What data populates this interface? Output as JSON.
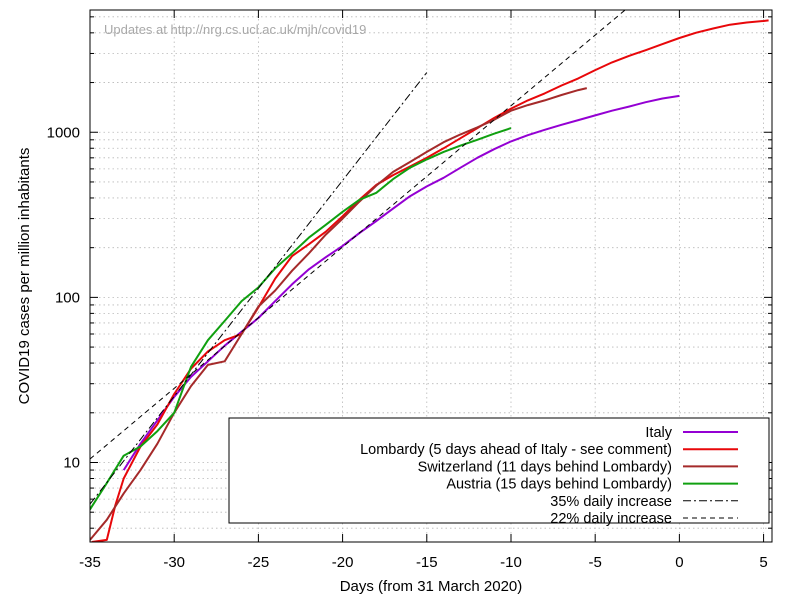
{
  "chart_data": {
    "type": "line",
    "watermark": "Updates at http://nrg.cs.ucl.ac.uk/mjh/covid19",
    "xlabel": "Days (from 31 March 2020)",
    "ylabel": "COVID19 cases per million inhabitants",
    "xlim": [
      -35,
      5.5
    ],
    "ylim": [
      3.3,
      5500
    ],
    "yscale": "log",
    "xticks": [
      -35,
      -30,
      -25,
      -20,
      -15,
      -10,
      -5,
      0,
      5
    ],
    "xtick_labels": [
      "-35",
      "-30",
      "-25",
      "-20",
      "-15",
      "-10",
      "-5",
      "0",
      "5"
    ],
    "yticks": [
      10,
      100,
      1000
    ],
    "ytick_labels": [
      "10",
      "100",
      "1000"
    ],
    "grid": true,
    "legend_position": "bottom-right",
    "series": [
      {
        "name": "Italy",
        "color": "#9400d3",
        "dash": "solid",
        "x": [
          -33,
          -32,
          -31,
          -30,
          -29,
          -28,
          -27,
          -26,
          -25,
          -24,
          -23,
          -22,
          -21,
          -20,
          -19,
          -18,
          -17,
          -16,
          -15,
          -14,
          -13,
          -12,
          -11,
          -10,
          -9,
          -8,
          -7,
          -6,
          -5,
          -4,
          -3,
          -2,
          -1,
          0
        ],
        "y": [
          9,
          13,
          18,
          25,
          33,
          41,
          51,
          62,
          75,
          95,
          120,
          148,
          175,
          205,
          245,
          290,
          345,
          410,
          470,
          530,
          610,
          700,
          790,
          880,
          960,
          1035,
          1110,
          1185,
          1265,
          1350,
          1430,
          1520,
          1600,
          1660
        ]
      },
      {
        "name": "Lombardy (5 days ahead of Italy - see comment)",
        "color": "#e8070a",
        "dash": "solid",
        "x": [
          -34.9,
          -34,
          -33.5,
          -33,
          -32,
          -31,
          -30,
          -29,
          -28,
          -27,
          -26,
          -25,
          -24,
          -23,
          -22,
          -21,
          -20,
          -19,
          -18,
          -17,
          -16,
          -15,
          -14,
          -13,
          -12,
          -11,
          -10,
          -9,
          -8,
          -7,
          -6,
          -5,
          -4,
          -3,
          -2,
          -1,
          0,
          1,
          2,
          3,
          4,
          5,
          5.3
        ],
        "y": [
          3.3,
          3.4,
          5.5,
          8,
          12.5,
          17,
          26,
          37,
          47,
          55,
          60,
          87,
          130,
          178,
          210,
          250,
          310,
          390,
          480,
          550,
          620,
          700,
          800,
          920,
          1060,
          1220,
          1390,
          1560,
          1720,
          1920,
          2120,
          2380,
          2650,
          2900,
          3140,
          3420,
          3720,
          4010,
          4250,
          4480,
          4620,
          4720,
          4760
        ]
      },
      {
        "name": "Switzerland (11 days behind Lombardy)",
        "color": "#a52a2a",
        "dash": "solid",
        "x": [
          -35,
          -34,
          -33,
          -32,
          -31,
          -30,
          -29,
          -28,
          -27,
          -26,
          -25,
          -24,
          -23,
          -22,
          -21,
          -20,
          -19,
          -18,
          -17,
          -16,
          -15,
          -14,
          -13,
          -12,
          -11,
          -10,
          -9,
          -8,
          -7,
          -6,
          -5.5
        ],
        "y": [
          3.4,
          4.5,
          6.5,
          9,
          13,
          20,
          29,
          39,
          41,
          60,
          88,
          110,
          145,
          185,
          240,
          300,
          380,
          475,
          575,
          660,
          760,
          870,
          970,
          1070,
          1190,
          1350,
          1460,
          1560,
          1680,
          1800,
          1850
        ]
      },
      {
        "name": "Austria (15 days behind Lombardy)",
        "color": "#10a010",
        "dash": "solid",
        "x": [
          -35,
          -34,
          -33,
          -32,
          -31,
          -30,
          -29,
          -28,
          -27,
          -26,
          -25,
          -24,
          -23,
          -22,
          -21,
          -20,
          -19,
          -18,
          -17,
          -16,
          -15,
          -14,
          -13,
          -12,
          -11,
          -10
        ],
        "y": [
          5.2,
          7.5,
          11,
          12.5,
          15.5,
          20,
          38,
          55,
          72,
          95,
          115,
          150,
          185,
          230,
          275,
          330,
          390,
          430,
          520,
          610,
          685,
          760,
          830,
          900,
          980,
          1060
        ]
      },
      {
        "name": "35% daily increase",
        "color": "#000000",
        "dash": "dash-dot",
        "x": [
          -35,
          -15
        ],
        "y": [
          5.6,
          2300
        ]
      },
      {
        "name": "22% daily increase",
        "color": "#000000",
        "dash": "dashed",
        "x": [
          -35,
          -2
        ],
        "y": [
          10.5,
          7000
        ]
      }
    ]
  }
}
